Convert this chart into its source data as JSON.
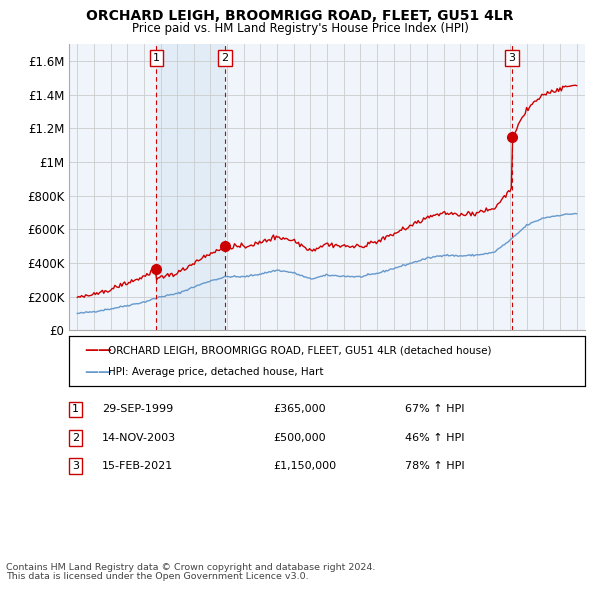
{
  "title": "ORCHARD LEIGH, BROOMRIGG ROAD, FLEET, GU51 4LR",
  "subtitle": "Price paid vs. HM Land Registry's House Price Index (HPI)",
  "legend_line1": "ORCHARD LEIGH, BROOMRIGG ROAD, FLEET, GU51 4LR (detached house)",
  "legend_line2": "HPI: Average price, detached house, Hart",
  "footer1": "Contains HM Land Registry data © Crown copyright and database right 2024.",
  "footer2": "This data is licensed under the Open Government Licence v3.0.",
  "sales": [
    {
      "num": 1,
      "date": "29-SEP-1999",
      "price": "£365,000",
      "change": "67% ↑ HPI",
      "x_year": 1999.75
    },
    {
      "num": 2,
      "date": "14-NOV-2003",
      "price": "£500,000",
      "change": "46% ↑ HPI",
      "x_year": 2003.87
    },
    {
      "num": 3,
      "date": "15-FEB-2021",
      "price": "£1,150,000",
      "change": "78% ↑ HPI",
      "x_year": 2021.12
    }
  ],
  "sale_prices": [
    365000,
    500000,
    1150000
  ],
  "ylim": [
    0,
    1700000
  ],
  "yticks": [
    0,
    200000,
    400000,
    600000,
    800000,
    1000000,
    1200000,
    1400000,
    1600000
  ],
  "ytick_labels": [
    "£0",
    "£200K",
    "£400K",
    "£600K",
    "£800K",
    "£1M",
    "£1.2M",
    "£1.4M",
    "£1.6M"
  ],
  "xlim": [
    1994.5,
    2025.5
  ],
  "red_color": "#cc0000",
  "blue_color": "#6699cc",
  "vline_color": "#cc0000",
  "grid_color": "#cccccc",
  "bg_color": "#ffffff",
  "plot_bg_color": "#dce9f5",
  "shade_color": "#dce9f5",
  "blue_hpi": {
    "1995": 100000,
    "1996": 112000,
    "1997": 128000,
    "1998": 148000,
    "1999": 168000,
    "2000": 200000,
    "2001": 218000,
    "2002": 258000,
    "2003": 295000,
    "2004": 320000,
    "2005": 318000,
    "2006": 335000,
    "2007": 358000,
    "2008": 342000,
    "2009": 305000,
    "2010": 328000,
    "2011": 322000,
    "2012": 318000,
    "2013": 338000,
    "2014": 368000,
    "2015": 398000,
    "2016": 428000,
    "2017": 448000,
    "2018": 442000,
    "2019": 448000,
    "2020": 462000,
    "2021": 535000,
    "2022": 625000,
    "2023": 668000,
    "2024": 685000,
    "2025": 695000
  }
}
